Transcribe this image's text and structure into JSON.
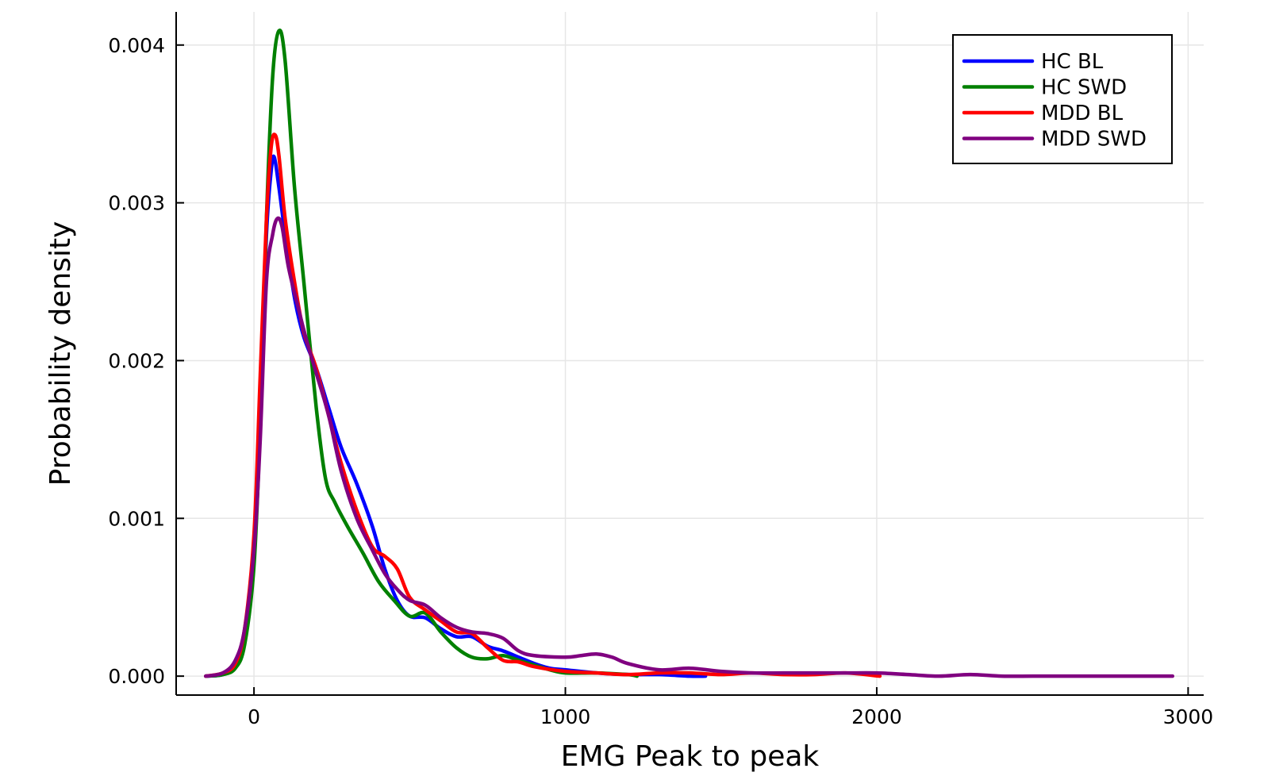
{
  "chart_data": {
    "type": "line",
    "title": "",
    "xlabel": "EMG Peak to peak",
    "ylabel": "Probability density",
    "xlim": [
      -250,
      3050
    ],
    "ylim": [
      -0.00012,
      0.00421
    ],
    "xticks": [
      0,
      1000,
      2000,
      3000
    ],
    "xtick_labels": [
      "0",
      "1000",
      "2000",
      "3000"
    ],
    "yticks": [
      0.0,
      0.001,
      0.002,
      0.003,
      0.004
    ],
    "ytick_labels": [
      "0.000",
      "0.001",
      "0.002",
      "0.003",
      "0.004"
    ],
    "grid": true,
    "legend": {
      "position": "top-right"
    },
    "series": [
      {
        "name": "HC BL",
        "color": "#0000ff",
        "x": [
          -155,
          -100,
          -60,
          -30,
          0,
          20,
          40,
          55,
          65,
          80,
          100,
          130,
          160,
          200,
          240,
          280,
          330,
          380,
          420,
          460,
          500,
          550,
          600,
          650,
          700,
          750,
          800,
          850,
          900,
          950,
          1000,
          1100,
          1200,
          1300,
          1400,
          1450
        ],
        "y": [
          0.0,
          1e-05,
          6e-05,
          0.00025,
          0.00085,
          0.0018,
          0.0028,
          0.0032,
          0.00329,
          0.0031,
          0.0028,
          0.0024,
          0.00215,
          0.00195,
          0.0017,
          0.00145,
          0.00122,
          0.00095,
          0.00068,
          0.00048,
          0.00038,
          0.00037,
          0.0003,
          0.00025,
          0.00025,
          0.00019,
          0.00016,
          0.00012,
          8e-05,
          5e-05,
          4e-05,
          2e-05,
          1e-05,
          1e-05,
          0.0,
          0.0
        ]
      },
      {
        "name": "HC SWD",
        "color": "#008000",
        "x": [
          -155,
          -100,
          -60,
          -30,
          0,
          20,
          40,
          60,
          80,
          100,
          130,
          160,
          200,
          230,
          260,
          300,
          350,
          400,
          450,
          500,
          550,
          600,
          650,
          700,
          750,
          800,
          850,
          900,
          950,
          1000,
          1100,
          1200,
          1230
        ],
        "y": [
          0.0,
          1e-05,
          5e-05,
          0.0002,
          0.0007,
          0.0016,
          0.0029,
          0.0038,
          0.00409,
          0.0039,
          0.0031,
          0.0025,
          0.0017,
          0.00125,
          0.0011,
          0.00095,
          0.00078,
          0.0006,
          0.00048,
          0.00038,
          0.0004,
          0.00028,
          0.00018,
          0.00012,
          0.00011,
          0.00013,
          0.0001,
          7e-05,
          4e-05,
          2e-05,
          2e-05,
          1e-05,
          0.0
        ]
      },
      {
        "name": "MDD BL",
        "color": "#ff0000",
        "x": [
          -155,
          -100,
          -60,
          -30,
          0,
          20,
          40,
          55,
          68,
          80,
          100,
          130,
          160,
          200,
          240,
          280,
          330,
          380,
          420,
          460,
          500,
          550,
          600,
          650,
          700,
          750,
          800,
          850,
          900,
          1000,
          1100,
          1200,
          1300,
          1400,
          1500,
          1600,
          1700,
          1800,
          1900,
          2010
        ],
        "y": [
          0.0,
          2e-05,
          8e-05,
          0.0003,
          0.0009,
          0.0019,
          0.0029,
          0.00335,
          0.00343,
          0.0033,
          0.0029,
          0.0025,
          0.00218,
          0.00195,
          0.00165,
          0.00135,
          0.00105,
          0.00082,
          0.00076,
          0.00068,
          0.0005,
          0.00042,
          0.00035,
          0.00028,
          0.00027,
          0.00018,
          0.0001,
          9e-05,
          6e-05,
          3e-05,
          2e-05,
          1e-05,
          2e-05,
          2e-05,
          1e-05,
          2e-05,
          1e-05,
          1e-05,
          2e-05,
          0.0
        ]
      },
      {
        "name": "MDD SWD",
        "color": "#800080",
        "x": [
          -155,
          -100,
          -60,
          -30,
          0,
          20,
          40,
          60,
          75,
          90,
          110,
          140,
          170,
          200,
          240,
          280,
          330,
          380,
          420,
          460,
          500,
          550,
          600,
          650,
          700,
          750,
          800,
          850,
          900,
          1000,
          1050,
          1100,
          1150,
          1200,
          1300,
          1400,
          1500,
          1600,
          1700,
          1800,
          1900,
          2000,
          2100,
          2200,
          2300,
          2400,
          2500,
          2600,
          2700,
          2800,
          2950
        ],
        "y": [
          0.0,
          2e-05,
          0.0001,
          0.0003,
          0.0008,
          0.0015,
          0.0025,
          0.0028,
          0.0029,
          0.00285,
          0.0026,
          0.00235,
          0.00212,
          0.00192,
          0.00165,
          0.0013,
          0.001,
          0.0008,
          0.00065,
          0.00055,
          0.00048,
          0.00045,
          0.00037,
          0.00031,
          0.00028,
          0.00027,
          0.00024,
          0.00016,
          0.00013,
          0.00012,
          0.00013,
          0.00014,
          0.00012,
          8e-05,
          4e-05,
          5e-05,
          3e-05,
          2e-05,
          2e-05,
          2e-05,
          2e-05,
          2e-05,
          1e-05,
          0.0,
          1e-05,
          0.0,
          0.0,
          0.0,
          0.0,
          0.0,
          0.0
        ]
      }
    ]
  }
}
